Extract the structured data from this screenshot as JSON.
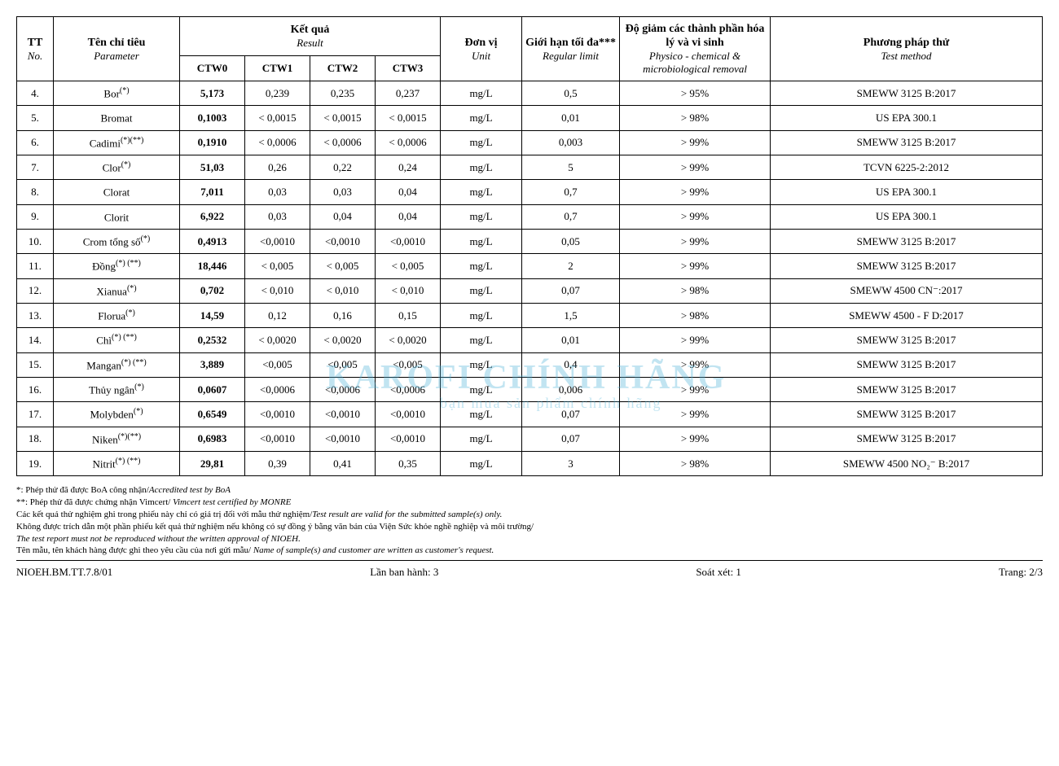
{
  "headers": {
    "tt_vi": "TT",
    "tt_en": "No.",
    "param_vi": "Tên chỉ tiêu",
    "param_en": "Parameter",
    "result_vi": "Kết quả",
    "result_en": "Result",
    "ctw0": "CTW0",
    "ctw1": "CTW1",
    "ctw2": "CTW2",
    "ctw3": "CTW3",
    "unit_vi": "Đơn vị",
    "unit_en": "Unit",
    "limit_vi": "Giới hạn tối đa***",
    "limit_en": "Regular limit",
    "removal_vi": "Độ giảm các thành phần hóa lý và vi sinh",
    "removal_en": "Physico - chemical & microbiological removal",
    "method_vi": "Phương pháp thử",
    "method_en": "Test method"
  },
  "rows": [
    {
      "no": "4.",
      "param": "Bor",
      "sup": "(*)",
      "ctw0": "5,173",
      "ctw1": "0,239",
      "ctw2": "0,235",
      "ctw3": "0,237",
      "unit": "mg/L",
      "limit": "0,5",
      "removal": "> 95%",
      "method": "SMEWW 3125 B:2017"
    },
    {
      "no": "5.",
      "param": "Bromat",
      "sup": "",
      "ctw0": "0,1003",
      "ctw1": "< 0,0015",
      "ctw2": "< 0,0015",
      "ctw3": "< 0,0015",
      "unit": "mg/L",
      "limit": "0,01",
      "removal": "> 98%",
      "method": "US EPA 300.1"
    },
    {
      "no": "6.",
      "param": "Cadimi",
      "sup": "(*)(**)",
      "ctw0": "0,1910",
      "ctw1": "< 0,0006",
      "ctw2": "< 0,0006",
      "ctw3": "< 0,0006",
      "unit": "mg/L",
      "limit": "0,003",
      "removal": "> 99%",
      "method": "SMEWW 3125 B:2017"
    },
    {
      "no": "7.",
      "param": "Clor",
      "sup": "(*)",
      "ctw0": "51,03",
      "ctw1": "0,26",
      "ctw2": "0,22",
      "ctw3": "0,24",
      "unit": "mg/L",
      "limit": "5",
      "removal": "> 99%",
      "method": "TCVN 6225-2:2012"
    },
    {
      "no": "8.",
      "param": "Clorat",
      "sup": "",
      "ctw0": "7,011",
      "ctw1": "0,03",
      "ctw2": "0,03",
      "ctw3": "0,04",
      "unit": "mg/L",
      "limit": "0,7",
      "removal": "> 99%",
      "method": "US EPA 300.1"
    },
    {
      "no": "9.",
      "param": "Clorit",
      "sup": "",
      "ctw0": "6,922",
      "ctw1": "0,03",
      "ctw2": "0,04",
      "ctw3": "0,04",
      "unit": "mg/L",
      "limit": "0,7",
      "removal": "> 99%",
      "method": "US EPA 300.1"
    },
    {
      "no": "10.",
      "param": "Crom tổng số",
      "sup": "(*)",
      "ctw0": "0,4913",
      "ctw1": "<0,0010",
      "ctw2": "<0,0010",
      "ctw3": "<0,0010",
      "unit": "mg/L",
      "limit": "0,05",
      "removal": "> 99%",
      "method": "SMEWW 3125 B:2017"
    },
    {
      "no": "11.",
      "param": "Đồng",
      "sup": "(*) (**)",
      "ctw0": "18,446",
      "ctw1": "< 0,005",
      "ctw2": "< 0,005",
      "ctw3": "< 0,005",
      "unit": "mg/L",
      "limit": "2",
      "removal": "> 99%",
      "method": "SMEWW 3125 B:2017"
    },
    {
      "no": "12.",
      "param": "Xianua",
      "sup": "(*)",
      "ctw0": "0,702",
      "ctw1": "< 0,010",
      "ctw2": "< 0,010",
      "ctw3": "< 0,010",
      "unit": "mg/L",
      "limit": "0,07",
      "removal": "> 98%",
      "method": "SMEWW 4500 CN⁻:2017"
    },
    {
      "no": "13.",
      "param": "Florua",
      "sup": "(*)",
      "ctw0": "14,59",
      "ctw1": "0,12",
      "ctw2": "0,16",
      "ctw3": "0,15",
      "unit": "mg/L",
      "limit": "1,5",
      "removal": "> 98%",
      "method": "SMEWW 4500 - F D:2017"
    },
    {
      "no": "14.",
      "param": "Chì",
      "sup": "(*) (**)",
      "ctw0": "0,2532",
      "ctw1": "< 0,0020",
      "ctw2": "< 0,0020",
      "ctw3": "< 0,0020",
      "unit": "mg/L",
      "limit": "0,01",
      "removal": "> 99%",
      "method": "SMEWW 3125 B:2017"
    },
    {
      "no": "15.",
      "param": "Mangan",
      "sup": "(*) (**)",
      "ctw0": "3,889",
      "ctw1": "<0,005",
      "ctw2": "<0,005",
      "ctw3": "<0,005",
      "unit": "mg/L",
      "limit": "0,4",
      "removal": "> 99%",
      "method": "SMEWW 3125 B:2017"
    },
    {
      "no": "16.",
      "param": "Thủy ngân",
      "sup": "(*)",
      "ctw0": "0,0607",
      "ctw1": "<0,0006",
      "ctw2": "<0,0006",
      "ctw3": "<0,0006",
      "unit": "mg/L",
      "limit": "0,006",
      "removal": "> 99%",
      "method": "SMEWW 3125 B:2017"
    },
    {
      "no": "17.",
      "param": "Molybden",
      "sup": "(*)",
      "ctw0": "0,6549",
      "ctw1": "<0,0010",
      "ctw2": "<0,0010",
      "ctw3": "<0,0010",
      "unit": "mg/L",
      "limit": "0,07",
      "removal": "> 99%",
      "method": "SMEWW 3125 B:2017"
    },
    {
      "no": "18.",
      "param": "Niken",
      "sup": "(*)(**)",
      "ctw0": "0,6983",
      "ctw1": "<0,0010",
      "ctw2": "<0,0010",
      "ctw3": "<0,0010",
      "unit": "mg/L",
      "limit": "0,07",
      "removal": "> 99%",
      "method": "SMEWW 3125 B:2017"
    },
    {
      "no": "19.",
      "param": "Nitrit",
      "sup": "(*) (**)",
      "ctw0": "29,81",
      "ctw1": "0,39",
      "ctw2": "0,41",
      "ctw3": "0,35",
      "unit": "mg/L",
      "limit": "3",
      "removal": "> 98%",
      "method": "SMEWW 4500 NO₂⁻ B:2017"
    }
  ],
  "footnotes": {
    "l1a": "*: Phép thử đã được BoA công nhận/",
    "l1b": "Accredited test by BoA",
    "l2a": "**: Phép thử đã được chứng nhận Vimcert/ ",
    "l2b": "Vimcert test certified by MONRE",
    "l3a": "Các kết quả thử nghiệm ghi trong phiếu này chỉ có giá trị đối với mẫu thử nghiệm/",
    "l3b": "Test result are valid for the submitted sample(s) only.",
    "l4a": "Không được trích dẫn một phần phiếu kết quả thử nghiệm nếu không có sự đồng ý bằng văn bản của Viện Sức khỏe nghề nghiệp và môi trường/",
    "l5b": "The test report must not be reproduced without the written approval of NIOEH.",
    "l6a": "Tên mẫu, tên khách hàng được ghi theo yêu cầu của nơi gửi mẫu/ ",
    "l6b": "Name of sample(s) and customer are written as customer's request."
  },
  "footer": {
    "left": "NIOEH.BM.TT.7.8/01",
    "mid1": "Lần ban hành: 3",
    "mid2": "Soát xét: 1",
    "right": "Trang: 2/3"
  },
  "watermark": {
    "text1": "KAROFI CHÍNH HÃNG",
    "text2": "bạn mua sản phẩm chính hãng"
  },
  "col_widths": [
    "45px",
    "155px",
    "80px",
    "80px",
    "80px",
    "80px",
    "100px",
    "120px",
    "185px",
    "200px"
  ]
}
